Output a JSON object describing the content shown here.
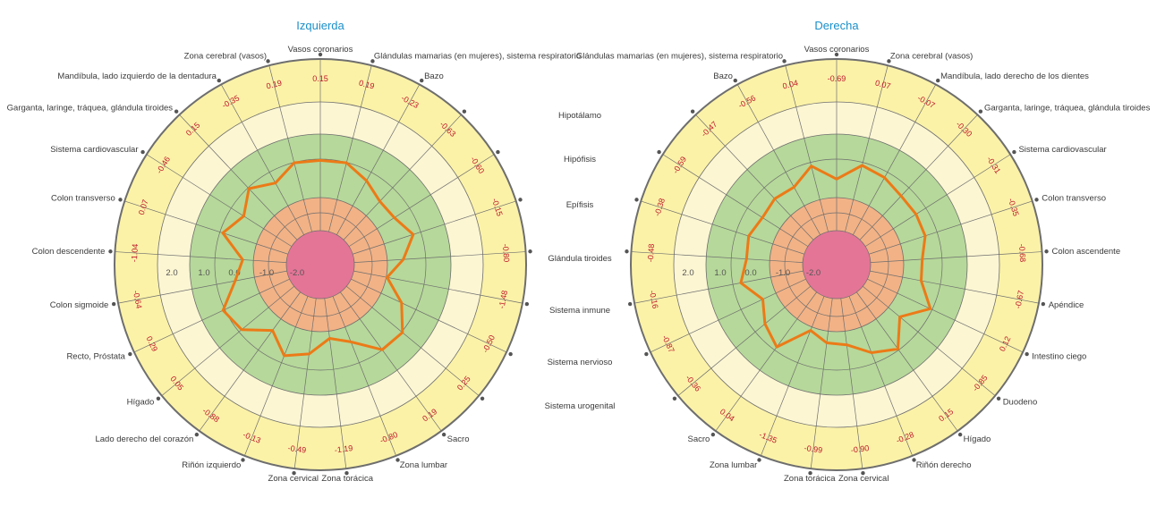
{
  "middle_labels": [
    "Hipotálamo",
    "Hipófisis",
    "Epífisis",
    "Glándula tiroides",
    "Sistema inmune",
    "Sistema nervioso",
    "Sistema urogenital"
  ],
  "colors": {
    "outer_ring": "#fbf2a8",
    "ring_2": "#fcf6d3",
    "ring_3": "#b6d89a",
    "ring_4": "#f2b286",
    "center": "#e47597",
    "line": "#ec7a17",
    "value_text": "#c0182a",
    "title": "#1a8fc9"
  },
  "chart_data": [
    {
      "type": "radar",
      "title": "Izquierda",
      "radial_ticks": [
        "2.0",
        "1.0",
        "0.0",
        "-1.0",
        "-2.0"
      ],
      "range": [
        -3,
        3
      ],
      "categories": [
        "Vasos coronarios",
        "Glándulas mamarias (en mujeres), sistema respiratorio",
        "Bazo",
        "",
        "",
        "",
        "",
        "",
        "",
        "",
        "Sacro",
        "Zona lumbar",
        "Zona torácica",
        "Zona cervical",
        "Riñón izquierdo",
        "Lado derecho del corazón",
        "Hígado",
        "Recto, Próstata",
        "Colon sigmoide",
        "Colon descendente",
        "Colon transverso",
        "Sistema cardiovascular",
        "Garganta, laringe, tráquea, glándula tiroides",
        "Mandíbula, lado izquierdo de la dentadura",
        "Zona cerebral (vasos)"
      ],
      "values": [
        0.15,
        0.19,
        -0.23,
        -0.63,
        -0.6,
        -0.15,
        -0.8,
        -1.48,
        -0.5,
        0.25,
        0.19,
        -0.8,
        -1.19,
        -0.49,
        -0.13,
        -0.88,
        0.05,
        0.29,
        -0.64,
        -1.04,
        0.07,
        -0.46,
        0.15,
        -0.35,
        0.19
      ]
    },
    {
      "type": "radar",
      "title": "Derecha",
      "radial_ticks": [
        "2.0",
        "1.0",
        "0.0",
        "-1.0",
        "-2.0"
      ],
      "range": [
        -3,
        3
      ],
      "categories": [
        "Vasos coronarios",
        "Zona cerebral (vasos)",
        "Mandíbula, lado derecho de los dientes",
        "Garganta, laringe, tráquea, glándula tiroides",
        "Sistema cardiovascular",
        "Colon transverso",
        "Colon ascendente",
        "Apéndice",
        "Intestino ciego",
        "Duodeno",
        "Hígado",
        "Riñón derecho",
        "Zona cervical",
        "Zona torácica",
        "Zona lumbar",
        "Sacro",
        "",
        "",
        "",
        "",
        "",
        "",
        "",
        "Bazo",
        "Glándulas mamarias (en mujeres), sistema respiratorio"
      ],
      "values": [
        -0.69,
        0.07,
        -0.07,
        -0.3,
        -0.31,
        -0.35,
        -0.68,
        -0.67,
        0.12,
        -0.85,
        0.15,
        -0.28,
        -0.9,
        -0.99,
        -1.35,
        0.04,
        -0.36,
        -0.87,
        -0.16,
        -0.48,
        -0.38,
        -0.59,
        -0.47,
        -0.56,
        0.04
      ]
    }
  ]
}
